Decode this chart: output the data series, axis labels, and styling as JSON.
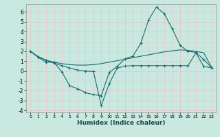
{
  "xlabel": "Humidex (Indice chaleur)",
  "bg_color": "#c8e8e0",
  "grid_color": "#e8c8c8",
  "line_color": "#1a6b6b",
  "xlim": [
    -0.5,
    23.5
  ],
  "ylim": [
    -4.2,
    6.8
  ],
  "yticks": [
    -4,
    -3,
    -2,
    -1,
    0,
    1,
    2,
    3,
    4,
    5,
    6
  ],
  "xticks": [
    0,
    1,
    2,
    3,
    4,
    5,
    6,
    7,
    8,
    9,
    10,
    11,
    12,
    13,
    14,
    15,
    16,
    17,
    18,
    19,
    20,
    21,
    22,
    23
  ],
  "line1_x": [
    0,
    1,
    2,
    3,
    4,
    5,
    6,
    7,
    8,
    9,
    10,
    11,
    12,
    13,
    14,
    15,
    16,
    17,
    18,
    19,
    20,
    21,
    22,
    23
  ],
  "line1_y": [
    2.0,
    1.4,
    0.9,
    0.9,
    -0.1,
    -1.5,
    -1.8,
    -2.2,
    -2.4,
    -2.5,
    -0.15,
    0.45,
    1.25,
    1.5,
    2.8,
    5.2,
    6.5,
    5.8,
    4.3,
    2.6,
    2.0,
    1.9,
    1.15,
    0.35
  ],
  "line2_x": [
    0,
    1,
    2,
    3,
    4,
    5,
    6,
    7,
    8,
    9,
    10,
    11,
    12,
    13,
    14,
    15,
    16,
    17,
    18,
    19,
    20,
    21,
    22,
    23
  ],
  "line2_y": [
    2.0,
    1.45,
    1.1,
    0.9,
    0.75,
    0.65,
    0.6,
    0.6,
    0.65,
    0.75,
    0.9,
    1.05,
    1.2,
    1.35,
    1.5,
    1.65,
    1.8,
    1.95,
    2.05,
    2.15,
    2.1,
    2.0,
    1.85,
    0.35
  ],
  "line3_x": [
    0,
    1,
    2,
    3,
    4,
    5,
    6,
    7,
    8,
    9,
    10,
    11,
    12,
    13,
    14,
    15,
    16,
    17,
    18,
    19,
    20,
    21,
    22,
    23
  ],
  "line3_y": [
    2.0,
    1.45,
    1.1,
    0.8,
    0.55,
    0.3,
    0.1,
    0.0,
    -0.05,
    -3.5,
    -1.3,
    0.3,
    0.5,
    0.55,
    0.55,
    0.55,
    0.55,
    0.55,
    0.55,
    0.55,
    0.55,
    1.85,
    0.45,
    0.35
  ]
}
